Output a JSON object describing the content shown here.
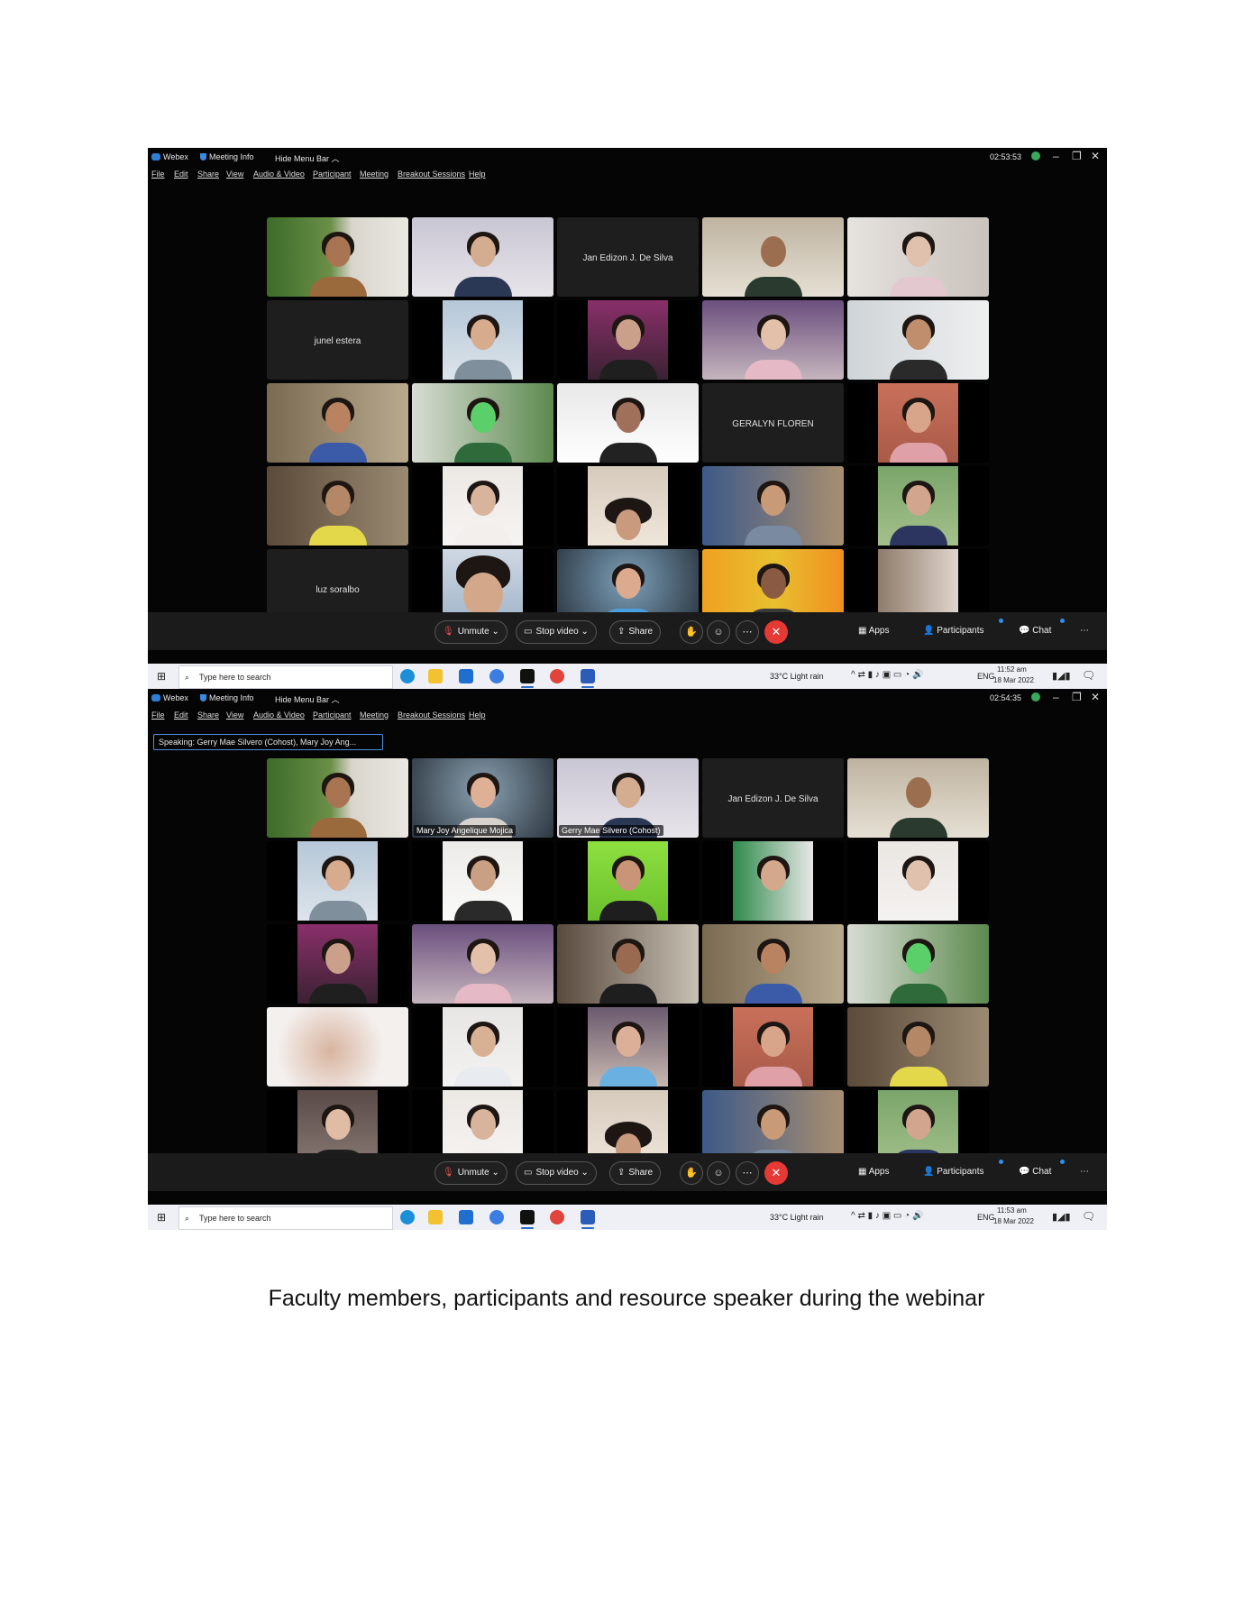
{
  "caption": "Faculty members, participants and resource speaker during the webinar",
  "titlebar": {
    "app_name": "Webex",
    "meeting_info": "Meeting Info",
    "hide_menu_bar": "Hide Menu Bar"
  },
  "menu": [
    "File",
    "Edit",
    "Share",
    "View",
    "Audio & Video",
    "Participant",
    "Meeting",
    "Breakout Sessions",
    "Help"
  ],
  "controls": {
    "unmute": "Unmute",
    "stop_video": "Stop video",
    "share": "Share",
    "apps": "Apps",
    "participants": "Participants",
    "chat": "Chat"
  },
  "taskbar": {
    "search_placeholder": "Type here to search",
    "weather": "33°C  Light rain",
    "language": "ENG",
    "date": "18 Mar 2022"
  },
  "screenshot_1": {
    "meeting_timer": "02:53:53",
    "clock_time": "11:52 am",
    "tiles": [
      {
        "type": "video"
      },
      {
        "type": "video"
      },
      {
        "type": "name",
        "name": "Jan Edizon J. De Silva"
      },
      {
        "type": "video"
      },
      {
        "type": "video"
      },
      {
        "type": "name",
        "name": "junel estera"
      },
      {
        "type": "video"
      },
      {
        "type": "video"
      },
      {
        "type": "video"
      },
      {
        "type": "video"
      },
      {
        "type": "video"
      },
      {
        "type": "video"
      },
      {
        "type": "video"
      },
      {
        "type": "name",
        "name": "GERALYN FLOREN"
      },
      {
        "type": "video"
      },
      {
        "type": "video"
      },
      {
        "type": "video"
      },
      {
        "type": "video"
      },
      {
        "type": "video"
      },
      {
        "type": "video"
      },
      {
        "type": "name",
        "name": "luz soralbo"
      },
      {
        "type": "video"
      },
      {
        "type": "video"
      },
      {
        "type": "video"
      },
      {
        "type": "video"
      }
    ]
  },
  "screenshot_2": {
    "meeting_timer": "02:54:35",
    "clock_time": "11:53 am",
    "speaking": "Speaking: Gerry Mae Silvero (Cohost), Mary Joy Ang...",
    "tiles": [
      {
        "type": "video"
      },
      {
        "type": "video",
        "label": "Mary Joy Angelique Mojica",
        "highlight": true
      },
      {
        "type": "video",
        "label": "Gerry Mae Silvero (Cohost)",
        "highlight": true
      },
      {
        "type": "name",
        "name": "Jan Edizon J. De Silva"
      },
      {
        "type": "video"
      },
      {
        "type": "video"
      },
      {
        "type": "video"
      },
      {
        "type": "video"
      },
      {
        "type": "video"
      },
      {
        "type": "video"
      },
      {
        "type": "video"
      },
      {
        "type": "video"
      },
      {
        "type": "video"
      },
      {
        "type": "video"
      },
      {
        "type": "video"
      },
      {
        "type": "video"
      },
      {
        "type": "video"
      },
      {
        "type": "video"
      },
      {
        "type": "video"
      },
      {
        "type": "video"
      },
      {
        "type": "video"
      },
      {
        "type": "video"
      },
      {
        "type": "video"
      },
      {
        "type": "video"
      },
      {
        "type": "video"
      }
    ]
  },
  "colors": {
    "webex_blue": "#2f7fd6",
    "end_call_red": "#e53935",
    "speaking_highlight": "#5aa0e8",
    "notification_blue": "#2e8ff0"
  }
}
